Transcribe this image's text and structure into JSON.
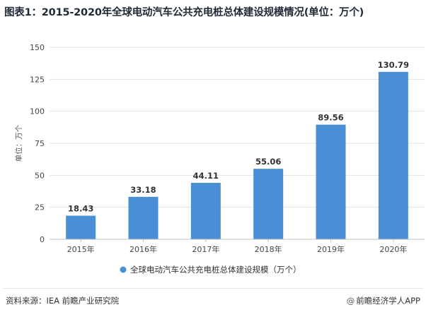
{
  "title": "图表1：2015-2020年全球电动汽车公共充电桩总体建设规模情况(单位：万个)",
  "source": "资料来源：IEA 前瞻产业研究院",
  "brand": "前瞻经济学人APP",
  "brand_icon": "at-icon",
  "accent_color": "#4a8fd6",
  "chart_data": {
    "type": "bar",
    "categories": [
      "2015年",
      "2016年",
      "2017年",
      "2018年",
      "2019年",
      "2020年"
    ],
    "series": [
      {
        "name": "全球电动汽车公共充电桩总体建设规模（万个）",
        "values": [
          18.43,
          33.18,
          44.11,
          55.06,
          89.56,
          130.79
        ]
      }
    ],
    "value_labels": [
      "18.43",
      "33.18",
      "44.11",
      "55.06",
      "89.56",
      "130.79"
    ],
    "ylabel": "单位：万个",
    "ylim": [
      0,
      150
    ],
    "yticks": [
      0,
      25,
      50,
      75,
      100,
      125,
      150
    ],
    "legend_position": "bottom",
    "grid": true
  }
}
